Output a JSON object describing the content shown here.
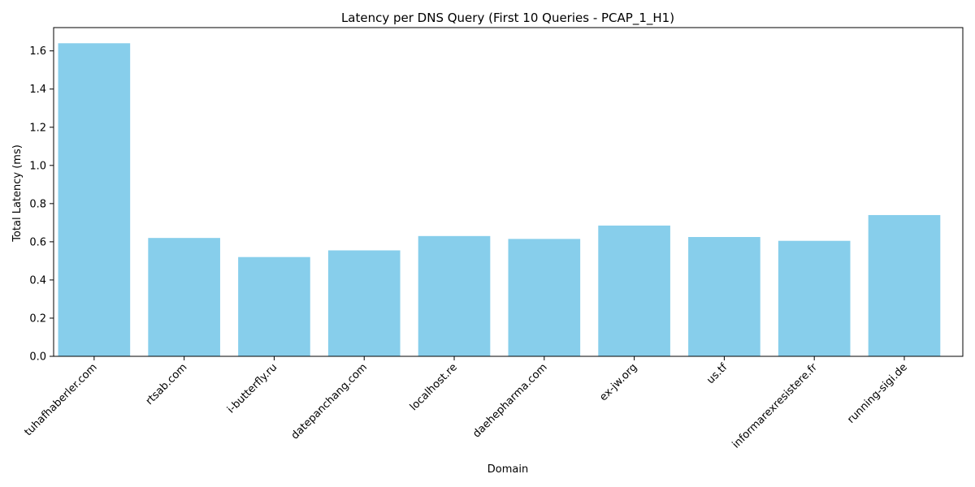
{
  "chart_data": {
    "type": "bar",
    "title": "Latency per DNS Query (First 10 Queries - PCAP_1_H1)",
    "xlabel": "Domain",
    "ylabel": "Total Latency (ms)",
    "categories": [
      "tuhafhaberler.com",
      "rtsab.com",
      "i-butterfly.ru",
      "datepanchang.com",
      "localhost.re",
      "daehepharma.com",
      "ex-jw.org",
      "us.tf",
      "informarexresistere.fr",
      "running-sigi.de"
    ],
    "values": [
      1.64,
      0.62,
      0.52,
      0.555,
      0.63,
      0.615,
      0.685,
      0.625,
      0.605,
      0.74
    ],
    "ylim": [
      0,
      1.722
    ],
    "yticks": [
      0.0,
      0.2,
      0.4,
      0.6,
      0.8,
      1.0,
      1.2,
      1.4,
      1.6
    ],
    "ytick_labels": [
      "0.0",
      "0.2",
      "0.4",
      "0.6",
      "0.8",
      "1.0",
      "1.2",
      "1.4",
      "1.6"
    ],
    "bar_color": "#87ceeb",
    "grid": false,
    "legend": "none"
  }
}
